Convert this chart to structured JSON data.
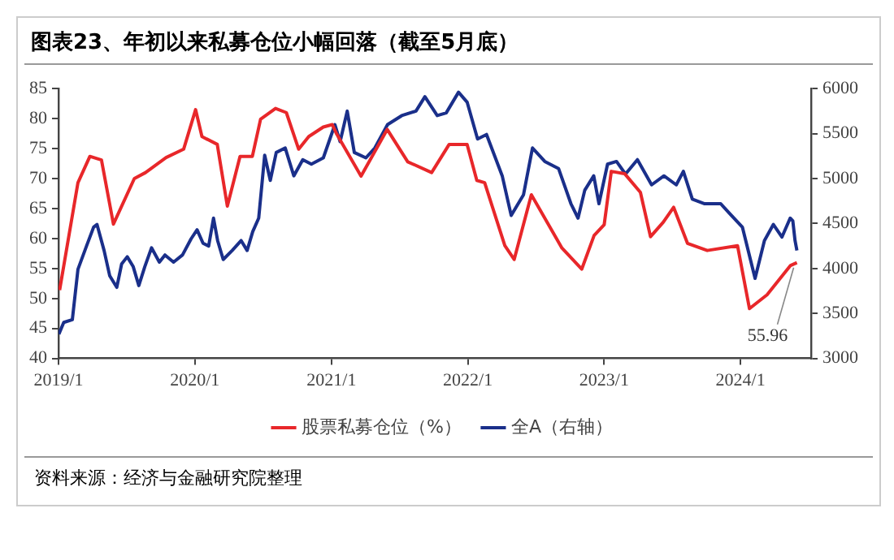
{
  "chart_data": {
    "type": "line",
    "title": "图表23、年初以来私募仓位小幅回落（截至5月底）",
    "xlim": [
      "2019-01-01",
      "2024-07-08"
    ],
    "xticks": [
      {
        "value": "2019-01-01",
        "label": "2019/1"
      },
      {
        "value": "2020-01-01",
        "label": "2020/1"
      },
      {
        "value": "2021-01-01",
        "label": "2021/1"
      },
      {
        "value": "2022-01-01",
        "label": "2022/1"
      },
      {
        "value": "2023-01-01",
        "label": "2023/1"
      },
      {
        "value": "2024-01-01",
        "label": "2024/1"
      }
    ],
    "ylim": [
      40,
      85
    ],
    "yticks": [
      40,
      45,
      50,
      55,
      60,
      65,
      70,
      75,
      80,
      85
    ],
    "y2lim": [
      3000,
      6000
    ],
    "y2ticks": [
      3000,
      3500,
      4000,
      4500,
      5000,
      5500,
      6000
    ],
    "grid": false,
    "legend": "bottom",
    "marker": "none",
    "line_style": "solid",
    "series": [
      {
        "name": "股票私募仓位（%）",
        "color": "#e8272a",
        "x": [
          "2019-01-04",
          "2019-02-22",
          "2019-03-26",
          "2019-04-26",
          "2019-05-28",
          "2019-07-23",
          "2019-08-22",
          "2019-10-16",
          "2019-12-02",
          "2020-01-03",
          "2020-01-20",
          "2020-03-01",
          "2020-03-28",
          "2020-05-01",
          "2020-06-03",
          "2020-06-25",
          "2020-08-04",
          "2020-09-02",
          "2020-10-05",
          "2020-11-01",
          "2020-12-10",
          "2021-01-03",
          "2021-01-15",
          "2021-03-21",
          "2021-05-30",
          "2021-07-24",
          "2021-09-26",
          "2021-11-12",
          "2021-12-30",
          "2022-01-25",
          "2022-02-15",
          "2022-04-10",
          "2022-05-05",
          "2022-06-20",
          "2022-09-10",
          "2022-11-02",
          "2022-12-05",
          "2023-01-01",
          "2023-01-20",
          "2023-02-25",
          "2023-04-08",
          "2023-05-05",
          "2023-06-08",
          "2023-07-06",
          "2023-08-12",
          "2023-10-04",
          "2023-12-24",
          "2024-01-25",
          "2024-03-12",
          "2024-05-14",
          "2024-05-31"
        ],
        "values": [
          51.4,
          69.3,
          73.7,
          73.1,
          62.4,
          70,
          71,
          73.5,
          74.9,
          81.5,
          77,
          75.7,
          65.4,
          73.7,
          73.7,
          79.9,
          81.7,
          81,
          74.9,
          77,
          78.6,
          79,
          77.4,
          70.4,
          78.2,
          72.8,
          71,
          75.7,
          75.7,
          69.7,
          69.3,
          58.8,
          56.5,
          67.3,
          58.4,
          54.9,
          60.5,
          62.3,
          71.2,
          70.8,
          67.7,
          60.3,
          62.7,
          65.2,
          59.2,
          58,
          58.8,
          48.3,
          50.6,
          55.5,
          55.96
        ]
      },
      {
        "name": "全A（右轴）",
        "color": "#1a2f8a",
        "axis": "y2",
        "x": [
          "2019-01-02",
          "2019-01-15",
          "2019-02-07",
          "2019-02-22",
          "2019-03-17",
          "2019-04-05",
          "2019-04-14",
          "2019-05-03",
          "2019-05-18",
          "2019-06-06",
          "2019-06-19",
          "2019-07-04",
          "2019-07-20",
          "2019-08-04",
          "2019-08-20",
          "2019-09-07",
          "2019-09-28",
          "2019-10-13",
          "2019-11-05",
          "2019-11-29",
          "2019-12-22",
          "2020-01-07",
          "2020-01-23",
          "2020-02-07",
          "2020-02-20",
          "2020-03-02",
          "2020-03-17",
          "2020-04-10",
          "2020-05-04",
          "2020-05-20",
          "2020-06-04",
          "2020-06-20",
          "2020-07-06",
          "2020-07-21",
          "2020-08-06",
          "2020-08-30",
          "2020-09-22",
          "2020-10-16",
          "2020-11-08",
          "2020-12-10",
          "2021-01-10",
          "2021-01-24",
          "2021-02-12",
          "2021-03-03",
          "2021-04-03",
          "2021-04-27",
          "2021-05-31",
          "2021-07-08",
          "2021-08-15",
          "2021-09-08",
          "2021-10-11",
          "2021-11-04",
          "2021-12-07",
          "2021-12-30",
          "2022-01-27",
          "2022-02-20",
          "2022-04-03",
          "2022-04-27",
          "2022-05-30",
          "2022-06-23",
          "2022-07-26",
          "2022-09-01",
          "2022-10-04",
          "2022-10-23",
          "2022-11-10",
          "2022-12-04",
          "2022-12-18",
          "2023-01-10",
          "2023-02-03",
          "2023-02-27",
          "2023-03-31",
          "2023-05-08",
          "2023-06-10",
          "2023-07-13",
          "2023-08-01",
          "2023-08-25",
          "2023-09-27",
          "2023-11-09",
          "2023-12-03",
          "2024-01-06",
          "2024-02-09",
          "2024-03-05",
          "2024-03-29",
          "2024-04-21",
          "2024-05-13",
          "2024-05-20",
          "2024-05-26",
          "2024-05-31"
        ],
        "values": [
          3270,
          3400,
          3430,
          3990,
          4250,
          4460,
          4490,
          4200,
          3920,
          3790,
          4050,
          4130,
          4020,
          3810,
          4020,
          4230,
          4070,
          4150,
          4070,
          4150,
          4330,
          4430,
          4280,
          4250,
          4560,
          4310,
          4100,
          4200,
          4310,
          4200,
          4410,
          4560,
          5260,
          4980,
          5290,
          5340,
          5030,
          5210,
          5160,
          5230,
          5600,
          5410,
          5750,
          5290,
          5230,
          5340,
          5600,
          5700,
          5750,
          5910,
          5700,
          5730,
          5960,
          5850,
          5440,
          5490,
          5030,
          4590,
          4820,
          5340,
          5190,
          5110,
          4720,
          4560,
          4870,
          5030,
          4720,
          5160,
          5190,
          5050,
          5210,
          4930,
          5030,
          4930,
          5080,
          4770,
          4720,
          4720,
          4610,
          4460,
          3890,
          4310,
          4490,
          4350,
          4560,
          4530,
          4310,
          4200
        ]
      }
    ],
    "annotations": [
      {
        "text": "55.96",
        "x": "2024-05-31",
        "y": 55.96
      },
      "资料来源：经济与金融研究院整理"
    ]
  }
}
